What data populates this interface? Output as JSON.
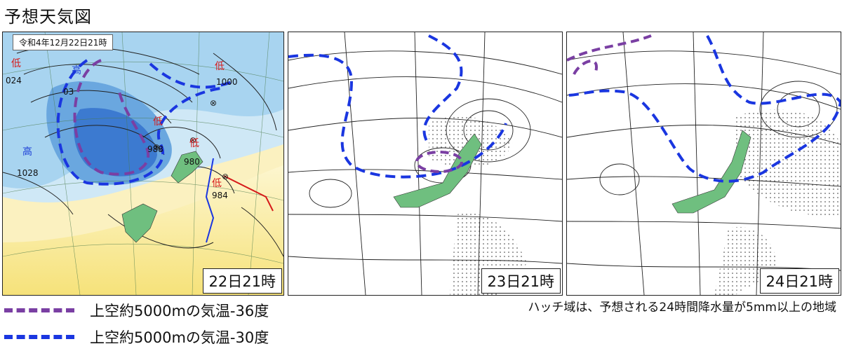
{
  "title": "予想天気図",
  "panels": [
    {
      "timestamp": "22日21時",
      "date_label": "令和4年12月22日21時",
      "pressure_labels": [
        "024",
        "1028",
        "1000",
        "988",
        "980",
        "984",
        "03"
      ],
      "lows": [
        "低",
        "低",
        "低",
        "低",
        "低"
      ],
      "highs": [
        "高",
        "高"
      ]
    },
    {
      "timestamp": "23日21時"
    },
    {
      "timestamp": "24日21時"
    }
  ],
  "legend": [
    {
      "label": "上空約5000mの気温-36度",
      "color": "#7a3fa3"
    },
    {
      "label": "上空約5000mの気温-30度",
      "color": "#1a36e0"
    }
  ],
  "note": "ハッチ域は、予想される24時間降水量が5mm以上の地域"
}
